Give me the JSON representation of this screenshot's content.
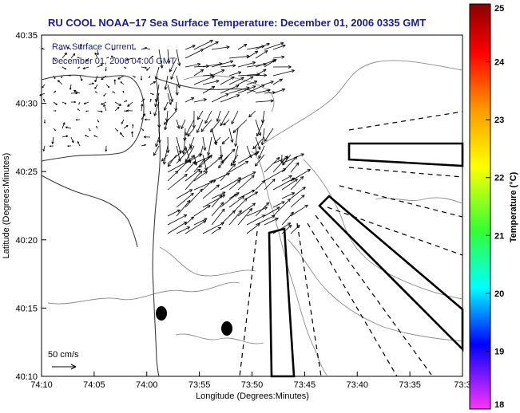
{
  "title": "RU COOL  NOAA−17  Sea Surface Temperature:  December 01, 2006 0335 GMT",
  "current_label": "Raw Surface Current",
  "current_time": "December 01, 2006 04:00 GMT",
  "scale_label": "50 cm/s",
  "axes": {
    "xlabel": "Longitude (Degrees:Minutes)",
    "ylabel": "Latitude (Degrees:Minutes)",
    "x_ticks": [
      "74:10",
      "74:05",
      "74:00",
      "73:55",
      "73:50",
      "73:45",
      "73:40",
      "73:35",
      "73:3"
    ],
    "y_ticks": [
      "40:35",
      "40:30",
      "40:25",
      "40:20",
      "40:15",
      "40:10"
    ]
  },
  "colorbar": {
    "label": "Temperature (°C)",
    "ticks": [
      "25",
      "24",
      "23",
      "22",
      "21",
      "20",
      "19",
      "18"
    ],
    "colors": [
      "#8b0000",
      "#ff0000",
      "#ff9900",
      "#ffff00",
      "#33ff33",
      "#00ffff",
      "#0000ff",
      "#ff33ff"
    ]
  },
  "features": {
    "coastline": "coastline",
    "depth_contours": "bathymetry-contours",
    "restricted_zones": "polygons",
    "markers": 2
  }
}
